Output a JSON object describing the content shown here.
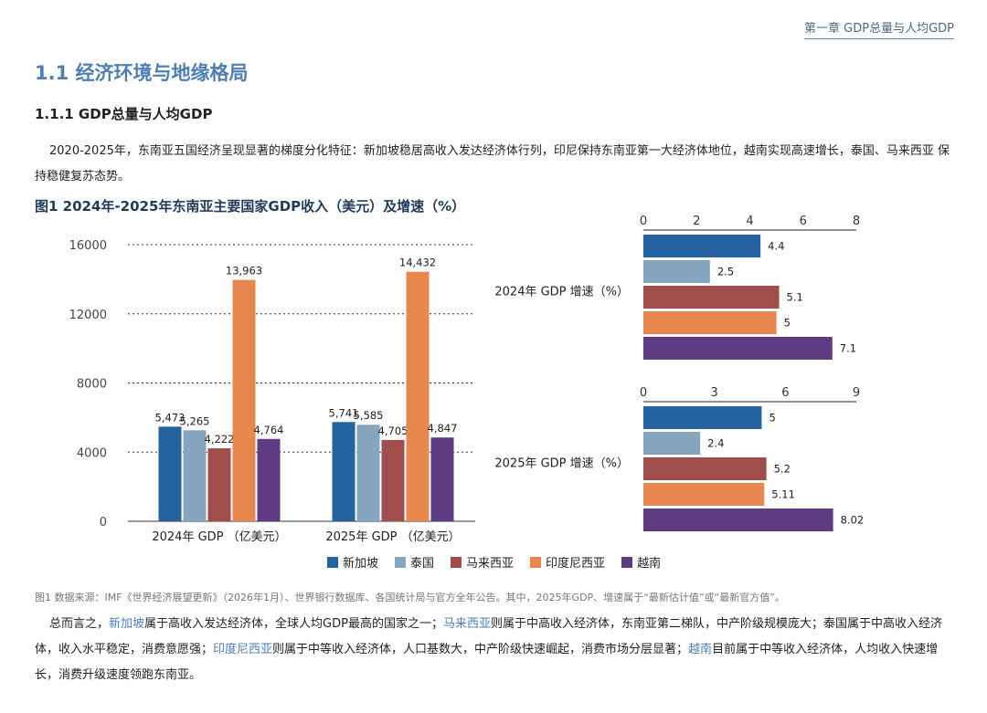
{
  "header": {
    "chapter_title": "第一章 GDP总量与人均GDP"
  },
  "section": {
    "h1": "1.1 经济环境与地缘格局",
    "h2": "1.1.1  GDP总量与人均GDP"
  },
  "intro_paragraph": "2020-2025年，东南亚五国经济呈现显著的梯度分化特征：新加坡稳居高收入发达经济体行列，印尼保持东南亚第一大经济体地位，越南实现高速增长，泰国、马来西亚 保持稳健复苏态势。",
  "figure": {
    "title": "图1 2024年-2025年东南亚主要国家GDP收入（美元）及增速（%）",
    "source": "图1 数据来源：IMF《世界经济展望更新》（2026年1月）、世界银行数据库、各国统计局与官方全年公告。其中，2025年GDP、增速属于“最新估计值”或“最新官方值”。"
  },
  "colors": {
    "新加坡": "#2563a0",
    "泰国": "#86a6bf",
    "马来西亚": "#a04e4c",
    "印度尼西亚": "#e8874f",
    "越南": "#5e3b82"
  },
  "chart_data": [
    {
      "type": "bar",
      "categories": [
        "2024年 GDP （亿美元）",
        "2025年 GDP （亿美元）"
      ],
      "series": [
        {
          "name": "新加坡",
          "values": [
            5473,
            5741
          ],
          "labels": [
            "5,473",
            "5,741"
          ]
        },
        {
          "name": "泰国",
          "values": [
            5265,
            5585
          ],
          "labels": [
            "5,265",
            "5,585"
          ]
        },
        {
          "name": "马来西亚",
          "values": [
            4222,
            4705
          ],
          "labels": [
            "4,222",
            "4,705"
          ]
        },
        {
          "name": "印度尼西亚",
          "values": [
            13963,
            14432
          ],
          "labels": [
            "13,963",
            "14,432"
          ]
        },
        {
          "name": "越南",
          "values": [
            4764,
            4847
          ],
          "labels": [
            "4,764",
            "4,847"
          ]
        }
      ],
      "ylim": [
        0,
        16000
      ],
      "yticks": [
        "0",
        "4000",
        "8000",
        "12000",
        "16000"
      ],
      "grid": "dotted horizontal",
      "legend": "bottom"
    },
    {
      "type": "bar",
      "orientation": "horizontal",
      "title": "2024年 GDP 增速（%）",
      "categories": [
        "新加坡",
        "泰国",
        "马来西亚",
        "印度尼西亚",
        "越南"
      ],
      "values": [
        4.4,
        2.5,
        5.1,
        5,
        7.1
      ],
      "labels": [
        "4.4",
        "2.5",
        "5.1",
        "5",
        "7.1"
      ],
      "xlim": [
        0,
        8
      ],
      "xticks": [
        "0",
        "2",
        "4",
        "6",
        "8"
      ],
      "axis": "top"
    },
    {
      "type": "bar",
      "orientation": "horizontal",
      "title": "2025年 GDP 增速（%）",
      "categories": [
        "新加坡",
        "泰国",
        "马来西亚",
        "印度尼西亚",
        "越南"
      ],
      "values": [
        5,
        2.4,
        5.2,
        5.11,
        8.02
      ],
      "labels": [
        "5",
        "2.4",
        "5.2",
        "5.11",
        "8.02"
      ],
      "xlim": [
        0,
        9
      ],
      "xticks": [
        "0",
        "3",
        "6",
        "9"
      ],
      "axis": "top"
    }
  ],
  "conclusion": {
    "p1": "总而言之，",
    "sg": "新加坡",
    "p2": "属于高收入发达经济体，全球人均GDP最高的国家之一；",
    "my": "马来西亚",
    "p3": "则属于中高收入经济体，东南亚第二梯队，中产阶级规模庞大；泰国属于中高收入经济体，收入水平稳定，消费意愿强；",
    "id": "印度尼西亚",
    "p4": "则属于中等收入经济体，人口基数大，中产阶级快速崛起，消费市场分层显著；",
    "vn": "越南",
    "p5": "目前属于中等收入经济体，人均收入快速增长，消费升级速度领跑东南亚。"
  }
}
